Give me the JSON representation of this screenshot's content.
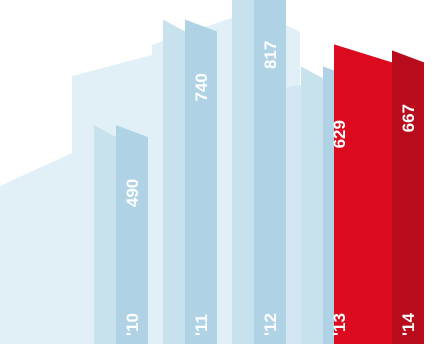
{
  "chart_data": {
    "type": "bar",
    "style": "3d-skyline",
    "categories": [
      "'10",
      "'11",
      "'12",
      "'13",
      "'14"
    ],
    "values": [
      490,
      740,
      817,
      629,
      667
    ],
    "ylim": [
      0,
      900
    ],
    "title": "",
    "xlabel": "",
    "ylabel": "",
    "grid": false,
    "highlight_index": 4,
    "colors": {
      "bar_front": "#afd3e4",
      "bar_side": "#c7e1ed",
      "skyline_back": "#e1eff6",
      "skyline_mid": "#d2e7f1",
      "highlight_front": "#b80c1d",
      "highlight_side": "#dc0a1e",
      "label_text": "#ffffff"
    }
  }
}
